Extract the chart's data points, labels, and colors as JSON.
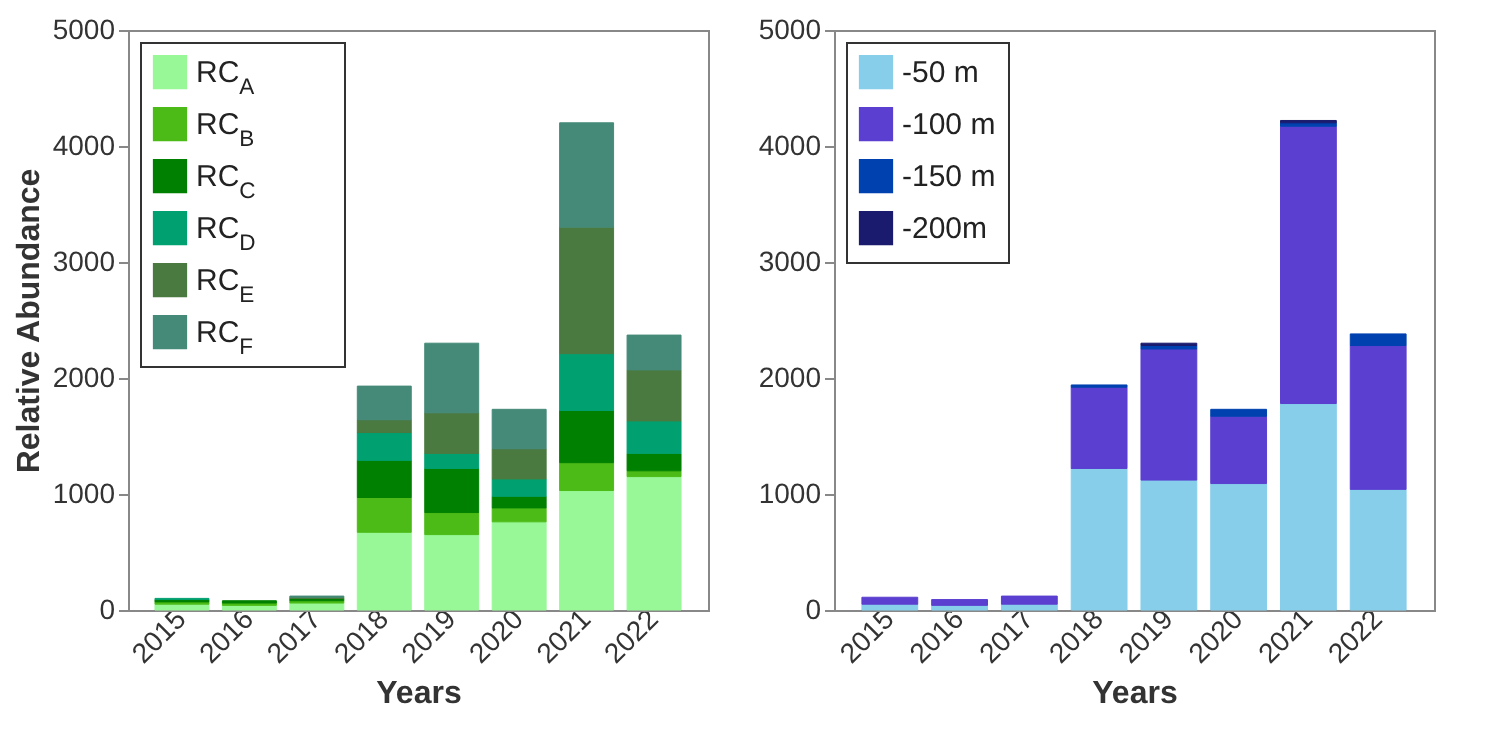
{
  "chart_data": [
    {
      "type": "bar",
      "stacked": true,
      "categories": [
        "2015",
        "2016",
        "2017",
        "2018",
        "2019",
        "2020",
        "2021",
        "2022"
      ],
      "xlabel": "Years",
      "ylabel": "Relative Abundance",
      "ylim": [
        0,
        5000
      ],
      "yticks": [
        0,
        1000,
        2000,
        3000,
        4000,
        5000
      ],
      "grid": false,
      "legend": "top left",
      "series": [
        {
          "name": "RC$_{A}$",
          "color": "#98f898",
          "values": [
            50,
            40,
            60,
            670,
            650,
            760,
            1030,
            1150
          ]
        },
        {
          "name": "RC$_{B}$",
          "color": "#4cbb17",
          "values": [
            20,
            20,
            20,
            300,
            190,
            120,
            240,
            50
          ]
        },
        {
          "name": "RC$_{C}$",
          "color": "#008000",
          "values": [
            20,
            20,
            20,
            320,
            380,
            100,
            450,
            150
          ]
        },
        {
          "name": "RC$_{D}$",
          "color": "#00a070",
          "values": [
            10,
            0,
            null,
            240,
            130,
            150,
            490,
            280
          ]
        },
        {
          "name": "RC$_{E}$",
          "color": "#4a7a40",
          "values": [
            0,
            0,
            10,
            110,
            350,
            260,
            1090,
            440
          ]
        },
        {
          "name": "RC$_{F}$",
          "color": "#458a78",
          "values": [
            0,
            0,
            10,
            290,
            600,
            340,
            900,
            300
          ]
        }
      ]
    },
    {
      "type": "bar",
      "stacked": true,
      "categories": [
        "2015",
        "2016",
        "2017",
        "2018",
        "2019",
        "2020",
        "2021",
        "2022"
      ],
      "xlabel": "Years",
      "ylim": [
        0,
        5000
      ],
      "yticks": [
        0,
        1000,
        2000,
        3000,
        4000,
        5000
      ],
      "grid": false,
      "legend": "top left",
      "series": [
        {
          "name": "-50 m",
          "color": "#87ceeb",
          "values": [
            50,
            40,
            50,
            1220,
            1120,
            1090,
            1780,
            1040
          ]
        },
        {
          "name": "-100 m",
          "color": "#5b3fd0",
          "values": [
            60,
            50,
            70,
            700,
            1130,
            580,
            2390,
            1240
          ]
        },
        {
          "name": "-150 m",
          "color": "#0041b0",
          "values": [
            0,
            0,
            0,
            20,
            30,
            60,
            30,
            100
          ]
        },
        {
          "name": "-200m",
          "color": "#1a1a6e",
          "values": [
            0,
            0,
            0,
            0,
            20,
            0,
            20,
            0
          ]
        }
      ]
    }
  ]
}
